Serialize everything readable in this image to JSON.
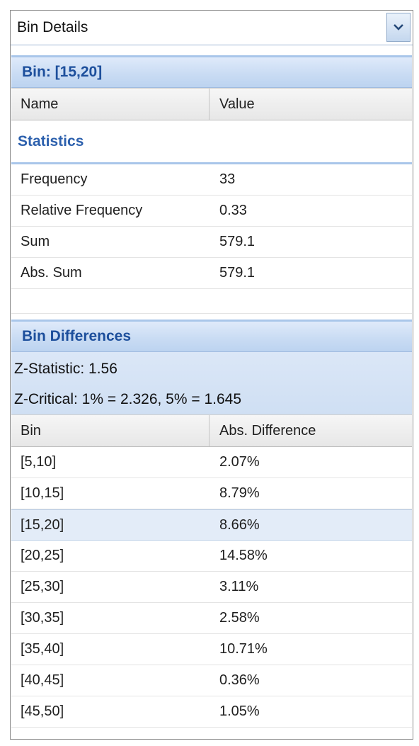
{
  "dropdown": {
    "selected": "Bin Details",
    "arrow_icon": "chevron-down-icon"
  },
  "bin_group": {
    "title": "Bin: [15,20]"
  },
  "properties_columns": {
    "name": "Name",
    "value": "Value"
  },
  "statistics": {
    "title": "Statistics",
    "rows": [
      {
        "name": "Frequency",
        "value": "33"
      },
      {
        "name": "Relative Frequency",
        "value": "0.33"
      },
      {
        "name": "Sum",
        "value": "579.1"
      },
      {
        "name": "Abs. Sum",
        "value": "579.1"
      }
    ]
  },
  "differences": {
    "title": "Bin Differences",
    "z_statistic": "Z-Statistic: 1.56",
    "z_critical": "Z-Critical: 1% = 2.326, 5% = 1.645",
    "columns": {
      "bin": "Bin",
      "diff": "Abs. Difference"
    },
    "rows": [
      {
        "bin": "[5,10]",
        "diff": "2.07%"
      },
      {
        "bin": "[10,15]",
        "diff": "8.79%"
      },
      {
        "bin": "[15,20]",
        "diff": "8.66%",
        "selected": true
      },
      {
        "bin": "[20,25]",
        "diff": "14.58%"
      },
      {
        "bin": "[25,30]",
        "diff": "3.11%"
      },
      {
        "bin": "[30,35]",
        "diff": "2.58%"
      },
      {
        "bin": "[35,40]",
        "diff": "10.71%"
      },
      {
        "bin": "[40,45]",
        "diff": "0.36%"
      },
      {
        "bin": "[45,50]",
        "diff": "1.05%"
      }
    ]
  },
  "colors": {
    "header_text": "#1d4f9c",
    "section_text": "#2c60ad",
    "selected_row": "#e3ecf8"
  }
}
